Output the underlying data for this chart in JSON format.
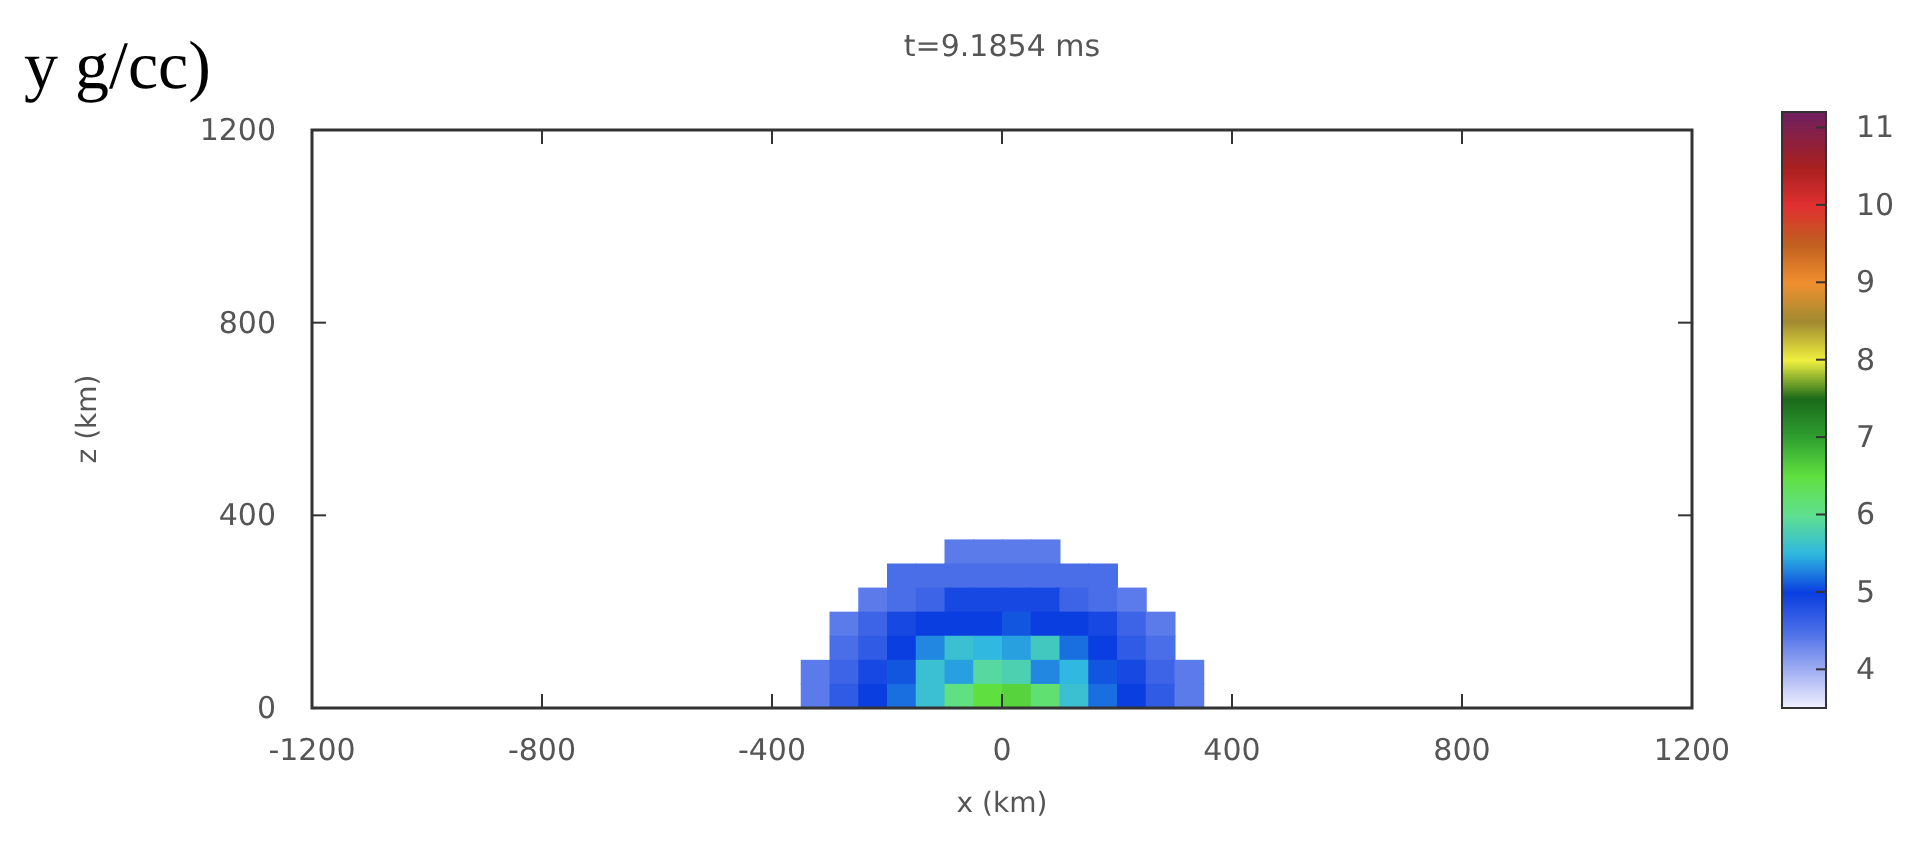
{
  "chart_data": {
    "type": "heatmap",
    "title": "t=9.1854 ms",
    "xlabel": "x (km)",
    "ylabel": "z (km)",
    "annotations": [
      "y g/cc)"
    ],
    "x": [
      -325,
      -275,
      -225,
      -175,
      -125,
      -75,
      -25,
      25,
      75,
      125,
      175,
      225,
      275,
      325
    ],
    "y": [
      325,
      275,
      225,
      175,
      125,
      75,
      25
    ],
    "cells": [
      [
        null,
        null,
        null,
        null,
        null,
        4.4,
        4.4,
        4.4,
        4.4,
        null,
        null,
        null,
        null,
        null
      ],
      [
        null,
        null,
        null,
        4.5,
        4.5,
        4.5,
        4.5,
        4.5,
        4.5,
        4.5,
        4.5,
        null,
        null,
        null
      ],
      [
        null,
        null,
        4.4,
        4.5,
        4.6,
        4.9,
        4.9,
        4.9,
        4.9,
        4.6,
        4.5,
        4.4,
        null,
        null
      ],
      [
        null,
        4.4,
        4.6,
        4.9,
        5.0,
        5.0,
        5.0,
        5.1,
        5.0,
        5.0,
        4.9,
        4.6,
        4.4,
        null
      ],
      [
        null,
        4.5,
        4.7,
        5.0,
        5.3,
        5.6,
        5.5,
        5.4,
        5.7,
        5.2,
        5.0,
        4.7,
        4.5,
        null
      ],
      [
        4.4,
        4.6,
        4.9,
        5.1,
        5.6,
        5.4,
        5.9,
        5.8,
        5.3,
        5.5,
        5.1,
        4.9,
        4.6,
        4.4
      ],
      [
        4.4,
        4.7,
        5.0,
        5.2,
        5.6,
        6.1,
        6.5,
        6.6,
        6.2,
        5.6,
        5.2,
        5.0,
        4.7,
        4.4
      ]
    ],
    "xlim": [
      -1200,
      1200
    ],
    "xticks": [
      -1200,
      -800,
      -400,
      0,
      400,
      800,
      1200
    ],
    "ylim": [
      0,
      1200
    ],
    "yticks": [
      0,
      400,
      800,
      1200
    ],
    "clim": [
      3.5,
      11.2
    ],
    "cticks": [
      4,
      5,
      6,
      7,
      8,
      9,
      10,
      11
    ]
  }
}
